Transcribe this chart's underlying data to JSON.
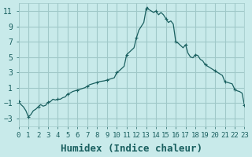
{
  "xlabel": "Humidex (Indice chaleur)",
  "ylabel": "",
  "background_color": "#c8eaea",
  "grid_color": "#a0c8c8",
  "line_color": "#1a6060",
  "marker_color": "#1a6060",
  "xlim": [
    0,
    23
  ],
  "ylim": [
    -4,
    12
  ],
  "yticks": [
    -3,
    -1,
    1,
    3,
    5,
    7,
    9,
    11
  ],
  "xticks": [
    0,
    1,
    2,
    3,
    4,
    5,
    6,
    7,
    8,
    9,
    10,
    11,
    12,
    13,
    14,
    15,
    16,
    17,
    18,
    19,
    20,
    21,
    22,
    23
  ],
  "x": [
    0,
    0.25,
    0.5,
    0.75,
    1.0,
    1.25,
    1.5,
    1.75,
    2.0,
    2.25,
    2.5,
    2.75,
    3.0,
    3.25,
    3.5,
    3.75,
    4.0,
    4.25,
    4.5,
    4.75,
    5.0,
    5.25,
    5.5,
    5.75,
    6.0,
    6.25,
    6.5,
    6.75,
    7.0,
    7.25,
    7.5,
    7.75,
    8.0,
    8.25,
    8.5,
    8.75,
    9.0,
    9.25,
    9.5,
    9.75,
    10.0,
    10.25,
    10.5,
    10.75,
    11.0,
    11.25,
    11.5,
    11.75,
    12.0,
    12.25,
    12.5,
    12.75,
    13.0,
    13.1,
    13.25,
    13.5,
    13.75,
    14.0,
    14.25,
    14.5,
    14.75,
    15.0,
    15.25,
    15.5,
    15.75,
    16.0,
    16.25,
    16.5,
    16.75,
    17.0,
    17.25,
    17.5,
    17.75,
    18.0,
    18.25,
    18.5,
    18.75,
    19.0,
    19.25,
    19.5,
    19.75,
    20.0,
    20.25,
    20.5,
    20.75,
    21.0,
    21.25,
    21.5,
    21.75,
    22.0,
    22.25,
    22.5,
    22.75,
    23.0
  ],
  "y": [
    -0.8,
    -1.2,
    -1.5,
    -2.0,
    -2.8,
    -2.5,
    -2.0,
    -1.8,
    -1.5,
    -1.2,
    -1.4,
    -1.3,
    -0.9,
    -0.8,
    -0.5,
    -0.6,
    -0.5,
    -0.5,
    -0.3,
    -0.2,
    0.2,
    0.3,
    0.5,
    0.6,
    0.7,
    0.8,
    0.9,
    1.0,
    1.2,
    1.4,
    1.5,
    1.6,
    1.7,
    1.8,
    1.85,
    1.9,
    2.0,
    2.1,
    2.2,
    2.3,
    3.0,
    3.2,
    3.5,
    3.8,
    5.3,
    5.6,
    5.9,
    6.2,
    7.5,
    8.5,
    9.0,
    9.5,
    11.3,
    11.5,
    11.2,
    11.0,
    10.8,
    11.0,
    10.5,
    10.8,
    10.5,
    10.0,
    9.5,
    9.7,
    9.3,
    7.0,
    6.8,
    6.5,
    6.2,
    6.6,
    5.5,
    5.0,
    4.9,
    5.3,
    5.2,
    4.7,
    4.5,
    4.0,
    3.8,
    3.6,
    3.4,
    3.2,
    3.0,
    2.8,
    2.6,
    1.8,
    1.7,
    1.6,
    1.5,
    0.8,
    0.6,
    0.5,
    0.3,
    -1.3
  ],
  "marker_x": [
    0,
    1,
    2,
    3,
    4,
    5,
    6,
    7,
    8,
    9,
    10,
    11,
    12,
    13,
    14,
    15,
    16,
    17,
    18,
    19,
    20,
    21,
    22,
    23
  ],
  "marker_y": [
    -0.8,
    -2.8,
    -1.5,
    -0.9,
    -0.5,
    0.2,
    0.7,
    1.2,
    1.7,
    2.0,
    3.0,
    5.3,
    7.5,
    11.3,
    11.0,
    10.0,
    7.0,
    6.6,
    5.3,
    4.0,
    3.2,
    1.8,
    0.8,
    -1.3
  ],
  "title_fontsize": 7,
  "xlabel_fontsize": 9,
  "tick_fontsize": 7
}
